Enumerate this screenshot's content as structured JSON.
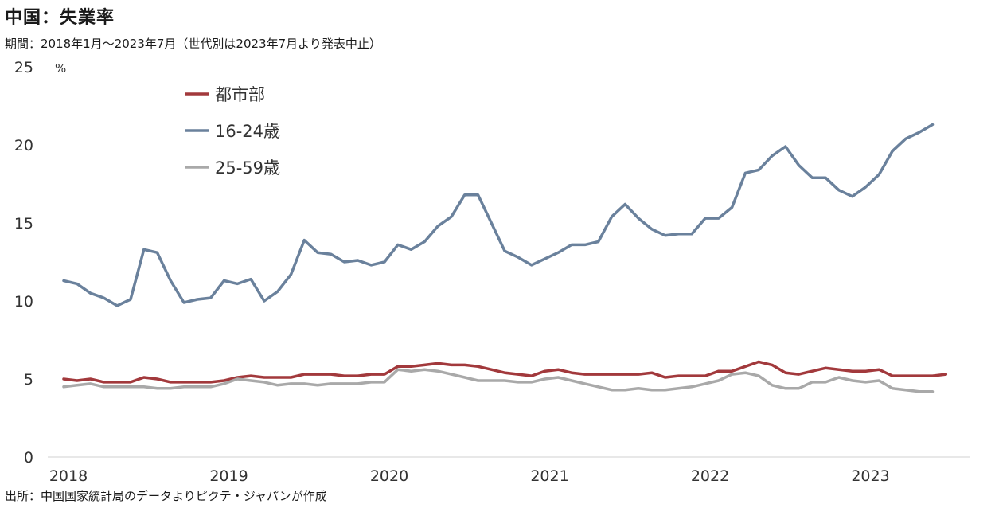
{
  "header": {
    "title": "中国：失業率",
    "subtitle": "期間：2018年1月～2023年7月（世代別は2023年7月より発表中止）"
  },
  "footer": {
    "source": "出所：中国国家統計局のデータよりピクテ・ジャパンが作成"
  },
  "chart_data": {
    "type": "line",
    "title": "中国：失業率",
    "ylabel_unit": "%",
    "ylim": [
      0,
      25
    ],
    "y_ticks": [
      "0",
      "5",
      "10",
      "15",
      "20",
      "25"
    ],
    "x_tick_labels": [
      "2018",
      "2019",
      "2020",
      "2021",
      "2022",
      "2023"
    ],
    "x_start": "2018-01",
    "grid": false,
    "legend_position": "upper-left",
    "series": [
      {
        "name": "都市部",
        "color": "#a2393c",
        "values": [
          5.0,
          4.9,
          5.0,
          4.8,
          4.8,
          4.8,
          5.1,
          5.0,
          4.8,
          4.8,
          4.8,
          4.8,
          4.9,
          5.1,
          5.2,
          5.1,
          5.1,
          5.1,
          5.3,
          5.3,
          5.3,
          5.2,
          5.2,
          5.3,
          5.3,
          5.8,
          5.8,
          5.9,
          6.0,
          5.9,
          5.9,
          5.8,
          5.6,
          5.4,
          5.3,
          5.2,
          5.5,
          5.6,
          5.4,
          5.3,
          5.3,
          5.3,
          5.3,
          5.3,
          5.4,
          5.1,
          5.2,
          5.2,
          5.2,
          5.5,
          5.5,
          5.8,
          6.1,
          5.9,
          5.4,
          5.3,
          5.5,
          5.7,
          5.6,
          5.5,
          5.5,
          5.6,
          5.2,
          5.2,
          5.2,
          5.2,
          5.3
        ]
      },
      {
        "name": "16-24歳",
        "color": "#6a819c",
        "values": [
          11.3,
          11.1,
          10.5,
          10.2,
          9.7,
          10.1,
          13.3,
          13.1,
          11.3,
          9.9,
          10.1,
          10.2,
          11.3,
          11.1,
          11.4,
          10.0,
          10.6,
          11.7,
          13.9,
          13.1,
          13.0,
          12.5,
          12.6,
          12.3,
          12.5,
          13.6,
          13.3,
          13.8,
          14.8,
          15.4,
          16.8,
          16.8,
          15.0,
          13.2,
          12.8,
          12.3,
          12.7,
          13.1,
          13.6,
          13.6,
          13.8,
          15.4,
          16.2,
          15.3,
          14.6,
          14.2,
          14.3,
          14.3,
          15.3,
          15.3,
          16.0,
          18.2,
          18.4,
          19.3,
          19.9,
          18.7,
          17.9,
          17.9,
          17.1,
          16.7,
          17.3,
          18.1,
          19.6,
          20.4,
          20.8,
          21.3
        ]
      },
      {
        "name": "25-59歳",
        "color": "#a9a9a9",
        "values": [
          4.5,
          4.6,
          4.7,
          4.5,
          4.5,
          4.5,
          4.5,
          4.4,
          4.4,
          4.5,
          4.5,
          4.5,
          4.7,
          5.0,
          4.9,
          4.8,
          4.6,
          4.7,
          4.7,
          4.6,
          4.7,
          4.7,
          4.7,
          4.8,
          4.8,
          5.6,
          5.5,
          5.6,
          5.5,
          5.3,
          5.1,
          4.9,
          4.9,
          4.9,
          4.8,
          4.8,
          5.0,
          5.1,
          4.9,
          4.7,
          4.5,
          4.3,
          4.3,
          4.4,
          4.3,
          4.3,
          4.4,
          4.5,
          4.7,
          4.9,
          5.3,
          5.4,
          5.2,
          4.6,
          4.4,
          4.4,
          4.8,
          4.8,
          5.1,
          4.9,
          4.8,
          4.9,
          4.4,
          4.3,
          4.2,
          4.2
        ]
      }
    ]
  }
}
